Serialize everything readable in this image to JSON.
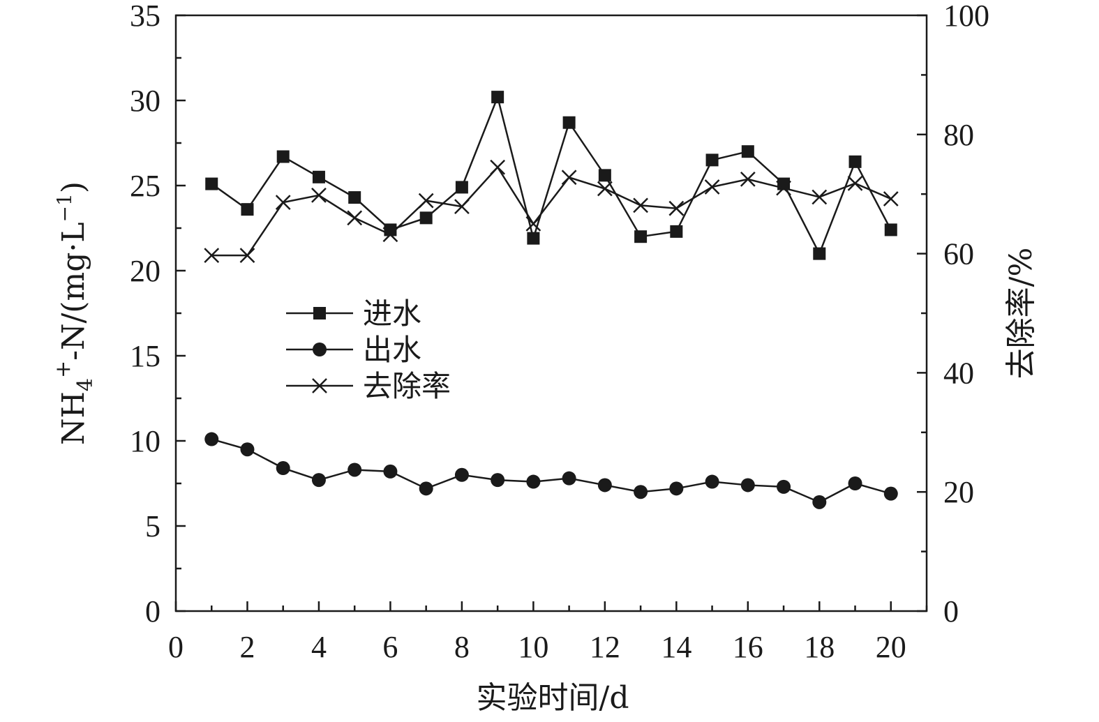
{
  "chart_data": {
    "type": "line",
    "x": [
      1,
      2,
      3,
      4,
      5,
      6,
      7,
      8,
      9,
      10,
      11,
      12,
      13,
      14,
      15,
      16,
      17,
      18,
      19,
      20
    ],
    "xlabel": "实验时间/d",
    "xlim": [
      0,
      21
    ],
    "xticks": [
      0,
      2,
      4,
      6,
      8,
      10,
      12,
      14,
      16,
      18,
      20
    ],
    "y_left": {
      "label_parts": {
        "base": "NH",
        "sub": "4",
        "sup": "+",
        "rest": "-N/(mg·L",
        "sup2": "−1",
        "close": ")"
      },
      "lim": [
        0,
        35
      ],
      "ticks": [
        0,
        5,
        10,
        15,
        20,
        25,
        30,
        35
      ]
    },
    "y_right": {
      "label": "去除率/%",
      "lim": [
        0,
        100
      ],
      "ticks": [
        0,
        20,
        40,
        60,
        80,
        100
      ]
    },
    "series": [
      {
        "name": "进水",
        "axis": "left",
        "marker": "square",
        "values": [
          25.1,
          23.6,
          26.7,
          25.5,
          24.3,
          22.4,
          23.1,
          24.9,
          30.2,
          21.9,
          28.7,
          25.6,
          22.0,
          22.3,
          26.5,
          27.0,
          25.1,
          21.0,
          26.4,
          22.4
        ]
      },
      {
        "name": "出水",
        "axis": "left",
        "marker": "circle",
        "values": [
          10.1,
          9.5,
          8.4,
          7.7,
          8.3,
          8.2,
          7.2,
          8.0,
          7.7,
          7.6,
          7.8,
          7.4,
          7.0,
          7.2,
          7.6,
          7.4,
          7.3,
          6.4,
          7.5,
          6.9
        ]
      },
      {
        "name": "去除率",
        "axis": "right",
        "marker": "x",
        "values": [
          59.7,
          59.7,
          68.6,
          69.8,
          66.0,
          63.2,
          68.9,
          67.9,
          74.5,
          65.0,
          72.8,
          70.9,
          68.1,
          67.6,
          71.2,
          72.5,
          71.0,
          69.5,
          71.8,
          69.2
        ]
      }
    ],
    "legend_position": "center-left",
    "grid": false
  }
}
